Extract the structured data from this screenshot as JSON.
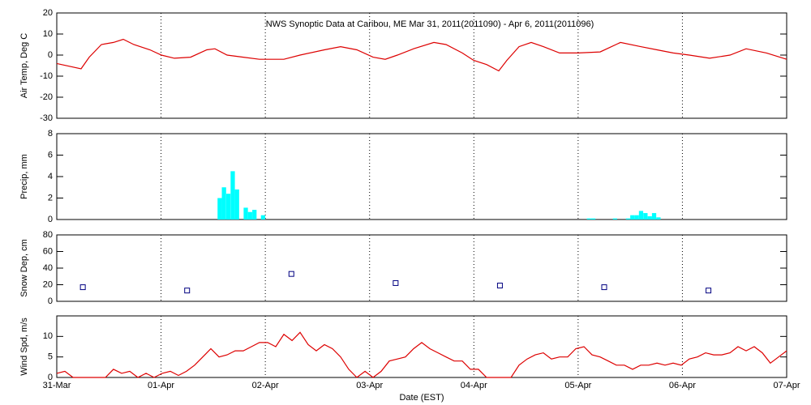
{
  "chart_data": [
    {
      "type": "line",
      "title": "NWS Synoptic Data at Caribou, ME   Mar 31, 2011(2011090) - Apr  6, 2011(2011096)",
      "ylabel": "Air Temp, Deg C",
      "color": "#dd0000",
      "x": [
        0,
        0.233,
        0.311,
        0.428,
        0.544,
        0.638,
        0.739,
        0.894,
        1.003,
        1.128,
        1.283,
        1.439,
        1.517,
        1.633,
        1.789,
        1.944,
        2.178,
        2.333,
        2.567,
        2.722,
        2.878,
        3.033,
        3.15,
        3.267,
        3.422,
        3.617,
        3.733,
        3.889,
        3.998,
        4.122,
        4.239,
        4.317,
        4.433,
        4.55,
        4.667,
        4.822,
        5.001,
        5.211,
        5.406,
        5.6,
        5.756,
        5.911,
        6.067,
        6.261,
        6.456,
        6.611,
        6.806,
        7.0
      ],
      "values": [
        -4,
        -6.5,
        -1,
        5,
        6,
        7.5,
        5,
        2.5,
        0,
        -1.5,
        -1,
        2.5,
        3,
        0,
        -1,
        -2,
        -2,
        0,
        2.5,
        4,
        2.5,
        -1,
        -2,
        0,
        3,
        6,
        5,
        1,
        -2.5,
        -4.5,
        -7.5,
        -2.5,
        4,
        6,
        4,
        1,
        1,
        1.5,
        6,
        4,
        2.5,
        1,
        0,
        -1.5,
        0,
        3,
        1,
        -2
      ],
      "xlim": [
        0,
        7
      ],
      "xticks": [
        0,
        1,
        2,
        3,
        4,
        5,
        6,
        7
      ],
      "ylim": [
        -30,
        20
      ],
      "yticks": [
        -30,
        -20,
        -10,
        0,
        10,
        20
      ],
      "grid": true
    },
    {
      "type": "bar",
      "ylabel": "Precip, mm",
      "color": "#00ffff",
      "x": [
        1.542,
        1.583,
        1.625,
        1.667,
        1.708,
        1.792,
        1.833,
        1.875,
        1.958,
        5.083,
        5.125,
        5.333,
        5.458,
        5.5,
        5.542,
        5.583,
        5.625,
        5.667,
        5.708,
        5.75
      ],
      "values": [
        2,
        3,
        2.4,
        4.5,
        2.8,
        1.1,
        0.7,
        0.9,
        0.4,
        0.1,
        0.1,
        0.1,
        0.1,
        0.4,
        0.4,
        0.8,
        0.6,
        0.3,
        0.6,
        0.2
      ],
      "xlim": [
        0,
        7
      ],
      "xticks": [
        0,
        1,
        2,
        3,
        4,
        5,
        6,
        7
      ],
      "ylim": [
        0,
        8
      ],
      "yticks": [
        0,
        2,
        4,
        6,
        8
      ],
      "grid": true
    },
    {
      "type": "scatter",
      "ylabel": "Snow Dep, cm",
      "color": "#000080",
      "x": [
        0.25,
        1.25,
        2.25,
        3.25,
        4.25,
        5.25,
        6.25
      ],
      "values": [
        17,
        13,
        33,
        22,
        19,
        17,
        13
      ],
      "xlim": [
        0,
        7
      ],
      "xticks": [
        0,
        1,
        2,
        3,
        4,
        5,
        6,
        7
      ],
      "ylim": [
        0,
        80
      ],
      "yticks": [
        0,
        20,
        40,
        60,
        80
      ],
      "grid": true
    },
    {
      "type": "line",
      "ylabel": "Wind Spd, m/s",
      "xlabel": "Date (EST)",
      "color": "#dd0000",
      "x": [
        0,
        0.078,
        0.156,
        0.233,
        0.311,
        0.389,
        0.467,
        0.544,
        0.622,
        0.7,
        0.778,
        0.856,
        0.933,
        1.011,
        1.089,
        1.167,
        1.244,
        1.322,
        1.4,
        1.478,
        1.556,
        1.633,
        1.711,
        1.789,
        1.867,
        1.944,
        2.022,
        2.1,
        2.178,
        2.256,
        2.333,
        2.411,
        2.489,
        2.567,
        2.644,
        2.722,
        2.8,
        2.878,
        2.956,
        3.033,
        3.111,
        3.189,
        3.267,
        3.344,
        3.422,
        3.5,
        3.578,
        3.656,
        3.733,
        3.811,
        3.889,
        3.967,
        4.044,
        4.122,
        4.2,
        4.278,
        4.356,
        4.433,
        4.511,
        4.589,
        4.667,
        4.744,
        4.822,
        4.9,
        4.978,
        5.056,
        5.133,
        5.211,
        5.289,
        5.367,
        5.444,
        5.522,
        5.6,
        5.678,
        5.756,
        5.833,
        5.911,
        5.989,
        6.067,
        6.144,
        6.222,
        6.3,
        6.378,
        6.456,
        6.533,
        6.611,
        6.689,
        6.767,
        6.844,
        6.922,
        7.0
      ],
      "values": [
        1,
        1.5,
        0,
        0,
        0,
        0,
        0,
        2,
        1,
        1.5,
        0,
        1,
        0,
        1,
        1.5,
        0.5,
        1.5,
        3,
        5,
        7,
        5,
        5.5,
        6.5,
        6.5,
        7.5,
        8.5,
        8.5,
        7.5,
        10.5,
        9,
        11,
        8,
        6.5,
        8,
        7,
        5,
        2,
        0,
        1.5,
        0,
        1.5,
        4,
        4.5,
        5,
        7,
        8.5,
        7,
        6,
        5,
        4,
        4,
        2,
        2,
        0,
        0,
        0,
        0,
        3,
        4.5,
        5.5,
        6,
        4.5,
        5,
        5,
        7,
        7.5,
        5.5,
        5,
        4,
        3,
        3,
        2,
        3,
        3,
        3.5,
        3,
        3.5,
        3,
        4.5,
        5,
        6,
        5.5,
        5.5,
        6,
        7.5,
        6.5,
        7.5,
        6,
        3.5,
        5,
        6.5
      ],
      "xlim": [
        0,
        7
      ],
      "xticks": [
        {
          "value": 0,
          "label": "31-Mar"
        },
        {
          "value": 1,
          "label": "01-Apr"
        },
        {
          "value": 2,
          "label": "02-Apr"
        },
        {
          "value": 3,
          "label": "03-Apr"
        },
        {
          "value": 4,
          "label": "04-Apr"
        },
        {
          "value": 5,
          "label": "05-Apr"
        },
        {
          "value": 6,
          "label": "06-Apr"
        },
        {
          "value": 7,
          "label": "07-Apr"
        }
      ],
      "ylim": [
        0,
        15
      ],
      "yticks": [
        0,
        5,
        10
      ],
      "grid": true
    }
  ]
}
